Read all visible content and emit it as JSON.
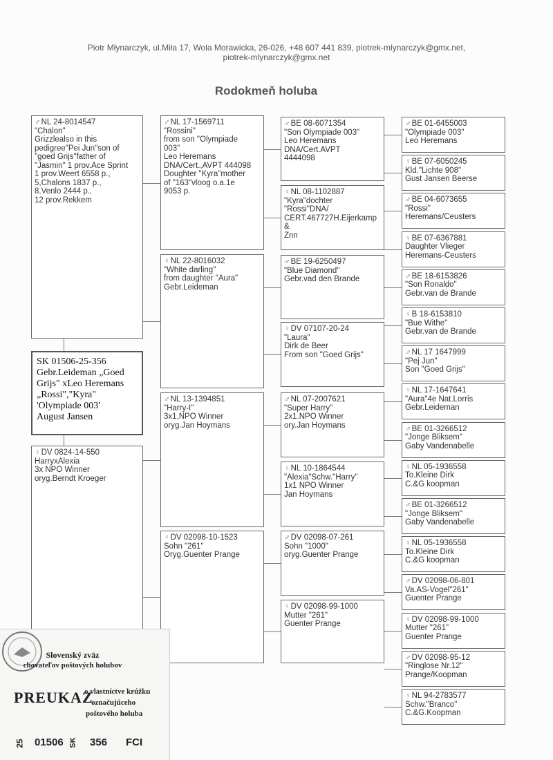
{
  "header": {
    "contact": [
      "Piotr Młynarczyk, ul.Miła 17, Wola Morawicka, 26-026, +48 607 441 839, piotrek-mlynarczyk@gmx.net,",
      "piotrek-mlynarczyk@gmx.net"
    ],
    "title": "Rodokmeň holuba"
  },
  "symbol_colors": {
    "♂": "#3b73c8",
    "♀": "#d46cc6"
  },
  "subject": {
    "lines": [
      "SK 01506-25-356",
      "Gebr.Leideman „Goed",
      "Grijs\" xLeo Heremans",
      "„Rossi\",\"Kyra\"",
      "'Olympiade 003'",
      "August Jansen"
    ]
  },
  "generations": [
    [
      {
        "sex": "♂",
        "ring": "NL 24-8014547",
        "lines": [
          "\"Chalon\"",
          "Grizzlealso in this",
          "pedigree\"Pei Jun\"son of",
          "\"goed Grijs\"father of",
          "\"Jasmin\" 1 prov.Ace Sprint",
          "1 prov.Weert 6558 p.,",
          "5,Chalons 1837 p.,",
          "8.Venlo 2444 p.,",
          "12 prov.Rekkem"
        ]
      },
      {
        "sex": "♀",
        "ring": "DV 0824-14-550",
        "lines": [
          "HarryxAlexia",
          "3x NPO Winner",
          "oryg.Berndt Kroeger"
        ]
      }
    ],
    [
      {
        "sex": "♂",
        "ring": "NL 17-1569711",
        "lines": [
          "\"Rossini\"",
          "from son \"Olympiade",
          "003\"",
          "Leo Heremans",
          "DNA/Cert.,AVPT 444098",
          "Doughter \"Kyra\"mother",
          "of \"163\"vloog o.a.1e",
          "9053 p."
        ]
      },
      {
        "sex": "♀",
        "ring": "NL 22-8016032",
        "lines": [
          "\"White darling\"",
          "from daughter \"Aura\"",
          "Gebr.Leideman"
        ]
      },
      {
        "sex": "♂",
        "ring": "NL 13-1394851",
        "lines": [
          "\"Harry-I\"",
          "3x1,NPO Winner",
          "oryg.Jan Hoymans"
        ]
      },
      {
        "sex": "♀",
        "ring": "DV 02098-10-1523",
        "lines": [
          "Sohn \"261\"",
          "Oryg.Guenter Prange"
        ]
      }
    ],
    [
      {
        "sex": "♂",
        "ring": "BE 08-6071354",
        "lines": [
          "\"Son Olympiade 003\"",
          "Leo Heremans",
          "DNA/Cert.AVPT",
          "4444098"
        ]
      },
      {
        "sex": "♀",
        "ring": "NL 08-1102887",
        "lines": [
          "\"Kyra\"dochter",
          "\"Rossi\"DNA/",
          "CERT.467727H.Eijerkamp",
          "&",
          "Znn"
        ]
      },
      {
        "sex": "♂",
        "ring": "BE 19-6250497",
        "lines": [
          "\"Blue Diamond\"",
          "Gebr.vad den Brande"
        ]
      },
      {
        "sex": "♀",
        "ring": "DV 07107-20-24",
        "lines": [
          "\"Laura\"",
          "Dirk de Beer",
          "From son \"Goed Grijs\""
        ]
      },
      {
        "sex": "♂",
        "ring": "NL 07-2007621",
        "lines": [
          "\"Super Harry\"",
          "2x1.NPO Winner",
          "ory.Jan Hoymans"
        ]
      },
      {
        "sex": "♀",
        "ring": "NL 10-1864544",
        "lines": [
          "\"Alexia\"Schw.\"Harry\"",
          "1x1 NPO Winner",
          "Jan Hoymans"
        ]
      },
      {
        "sex": "♂",
        "ring": "DV 02098-07-261",
        "lines": [
          "Sohn \"1000\"",
          "oryg.Guenter Prange"
        ]
      },
      {
        "sex": "♀",
        "ring": "DV 02098-99-1000",
        "lines": [
          "Mutter \"261\"",
          "Guenter Prange"
        ]
      }
    ],
    [
      {
        "sex": "♂",
        "ring": "BE 01-6455003",
        "lines": [
          "\"Olympiade 003\"",
          "Leo Heremans"
        ]
      },
      {
        "sex": "♀",
        "ring": "BE 07-6050245",
        "lines": [
          "Kld.\"Lichte 908\"",
          "Gust Jansen Beerse"
        ]
      },
      {
        "sex": "♂",
        "ring": "BE 04-6073655",
        "lines": [
          "\"Rossi\"",
          "Heremans/Ceusters"
        ]
      },
      {
        "sex": "♀",
        "ring": "BE 07-6367881",
        "lines": [
          "Daughter Vlieger",
          "Heremans-Ceusters"
        ]
      },
      {
        "sex": "♂",
        "ring": "BE 18-6153826",
        "lines": [
          "\"Son Ronaldo\"",
          "Gebr.van de Brande"
        ]
      },
      {
        "sex": "♀",
        "ring": "B 18-6153810",
        "lines": [
          "\"Bue Withe\"",
          "Gebr.van de Brande"
        ]
      },
      {
        "sex": "♂",
        "ring": "NL 17 1647999",
        "lines": [
          "\"Pej Jun\"",
          "Son \"Goed Grijs\""
        ]
      },
      {
        "sex": "♀",
        "ring": "NL 17-1647641",
        "lines": [
          "\"Aura\"4e Nat.Lorris",
          "Gebr.Leideman"
        ]
      },
      {
        "sex": "♂",
        "ring": "BE 01-3266512",
        "lines": [
          "\"Jonge Bliksem\"",
          "Gaby Vandenabelle"
        ]
      },
      {
        "sex": "♀",
        "ring": "NL 05-1936558",
        "lines": [
          "To.Kleine Dirk",
          "C.&G koopman"
        ]
      },
      {
        "sex": "♂",
        "ring": "BE 01-3266512",
        "lines": [
          "\"Jonge Bliksem\"",
          "Gaby Vandenabelle"
        ]
      },
      {
        "sex": "♀",
        "ring": "NL 05-1936558",
        "lines": [
          "To.Kleine Dirk",
          "C.&G koopman"
        ]
      },
      {
        "sex": "♂",
        "ring": "DV 02098-06-801",
        "lines": [
          "Va.AS-Vogel\"261\"",
          "Guenter Prange"
        ]
      },
      {
        "sex": "♀",
        "ring": "DV 02098-99-1000",
        "lines": [
          "Mutter \"261\"",
          "Guenter Prange"
        ]
      },
      {
        "sex": "♂",
        "ring": "DV 02098-95-12",
        "lines": [
          "\"Ringlose Nr.12\"",
          "Prange/Koopman"
        ]
      },
      {
        "sex": "♀",
        "ring": "NL 94-2783577",
        "lines": [
          "Schw.\"Branco\"",
          "C.&G.Koopman"
        ]
      }
    ]
  ],
  "card": {
    "org": [
      "Slovenský zväz",
      "chovateľov poštových holubov"
    ],
    "title": "PREUKAZ",
    "description": [
      "o vlastníctve krúžku",
      "označujúceho",
      "poštového holuba"
    ],
    "ring": [
      "25",
      "01506",
      "SK",
      "356",
      "FCI"
    ]
  }
}
